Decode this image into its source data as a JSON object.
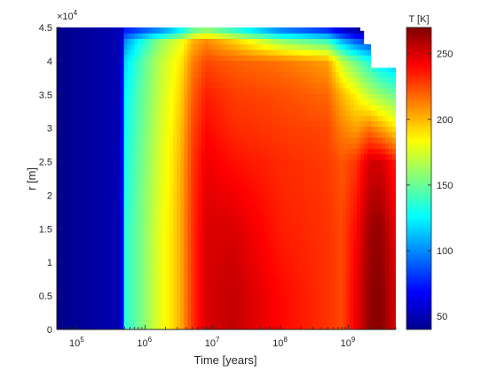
{
  "chart_data": {
    "type": "heatmap",
    "xlabel": "Time [years]",
    "ylabel": "r [m]",
    "x_scale": "log",
    "xlim": [
      50000,
      5000000000
    ],
    "x_ticks": [
      {
        "value": 100000,
        "base": "10",
        "exp": "5"
      },
      {
        "value": 1000000,
        "base": "10",
        "exp": "6"
      },
      {
        "value": 10000000,
        "base": "10",
        "exp": "7"
      },
      {
        "value": 100000000,
        "base": "10",
        "exp": "8"
      },
      {
        "value": 1000000000,
        "base": "10",
        "exp": "9"
      }
    ],
    "ylim": [
      0,
      45000
    ],
    "y_multiplier": {
      "base": "×10",
      "exp": "4"
    },
    "y_ticks": [
      {
        "value": 0,
        "label": "0"
      },
      {
        "value": 5000,
        "label": "0.5"
      },
      {
        "value": 10000,
        "label": "1"
      },
      {
        "value": 15000,
        "label": "1.5"
      },
      {
        "value": 20000,
        "label": "2"
      },
      {
        "value": 25000,
        "label": "2.5"
      },
      {
        "value": 30000,
        "label": "3"
      },
      {
        "value": 35000,
        "label": "3.5"
      },
      {
        "value": 40000,
        "label": "4"
      },
      {
        "value": 45000,
        "label": "4.5"
      }
    ],
    "colorbar": {
      "label": "T [K]",
      "range": [
        40,
        270
      ],
      "ticks": [
        {
          "value": 50,
          "label": "50"
        },
        {
          "value": 100,
          "label": "100"
        },
        {
          "value": 150,
          "label": "150"
        },
        {
          "value": 200,
          "label": "200"
        },
        {
          "value": 250,
          "label": "250"
        }
      ],
      "colormap": "jet"
    },
    "temperature_field_K": {
      "time_years": [
        50000,
        100000,
        300000,
        450000,
        500000,
        800000,
        1500000,
        2500000,
        3500000,
        5000000,
        8000000,
        20000000,
        100000000,
        500000000,
        800000000,
        1300000000,
        2000000000,
        3000000000,
        5000000000
      ],
      "r_m": [
        0,
        5000,
        15000,
        25000,
        30000,
        35000,
        40000,
        43000,
        44500
      ],
      "rows_by_r": [
        [
          42,
          45,
          50,
          52,
          135,
          150,
          175,
          190,
          205,
          230,
          250,
          255,
          240,
          230,
          225,
          245,
          265,
          268,
          250
        ],
        [
          42,
          45,
          50,
          52,
          135,
          150,
          175,
          190,
          205,
          230,
          250,
          255,
          240,
          230,
          225,
          245,
          265,
          268,
          250
        ],
        [
          42,
          45,
          50,
          52,
          135,
          150,
          175,
          190,
          205,
          230,
          250,
          250,
          235,
          230,
          225,
          240,
          262,
          265,
          245
        ],
        [
          42,
          45,
          50,
          52,
          130,
          148,
          172,
          188,
          203,
          228,
          245,
          238,
          232,
          228,
          222,
          230,
          250,
          252,
          235
        ],
        [
          42,
          45,
          50,
          52,
          128,
          146,
          170,
          186,
          200,
          225,
          240,
          232,
          228,
          225,
          212,
          205,
          215,
          205,
          190
        ],
        [
          42,
          45,
          50,
          52,
          125,
          144,
          168,
          183,
          196,
          220,
          235,
          228,
          224,
          218,
          200,
          185,
          170,
          160,
          150
        ],
        [
          42,
          45,
          50,
          52,
          118,
          140,
          165,
          180,
          190,
          212,
          225,
          220,
          215,
          205,
          170,
          150,
          135,
          120,
          110
        ],
        [
          42,
          45,
          50,
          52,
          100,
          125,
          155,
          170,
          180,
          200,
          210,
          195,
          160,
          140,
          110,
          90,
          80,
          72,
          65
        ],
        [
          42,
          45,
          50,
          52,
          75,
          85,
          100,
          115,
          130,
          150,
          160,
          140,
          100,
          80,
          60,
          50,
          45,
          42,
          42
        ]
      ],
      "outer_radius_m": [
        {
          "t": 50000,
          "r": 45000
        },
        {
          "t": 1500000000,
          "r": 45000
        },
        {
          "t": 1500000000,
          "r": 44500
        },
        {
          "t": 1700000000,
          "r": 44500
        },
        {
          "t": 1700000000,
          "r": 42500
        },
        {
          "t": 2150000000,
          "r": 42500
        },
        {
          "t": 2150000000,
          "r": 39000
        },
        {
          "t": 5000000000,
          "r": 39000
        }
      ]
    }
  }
}
